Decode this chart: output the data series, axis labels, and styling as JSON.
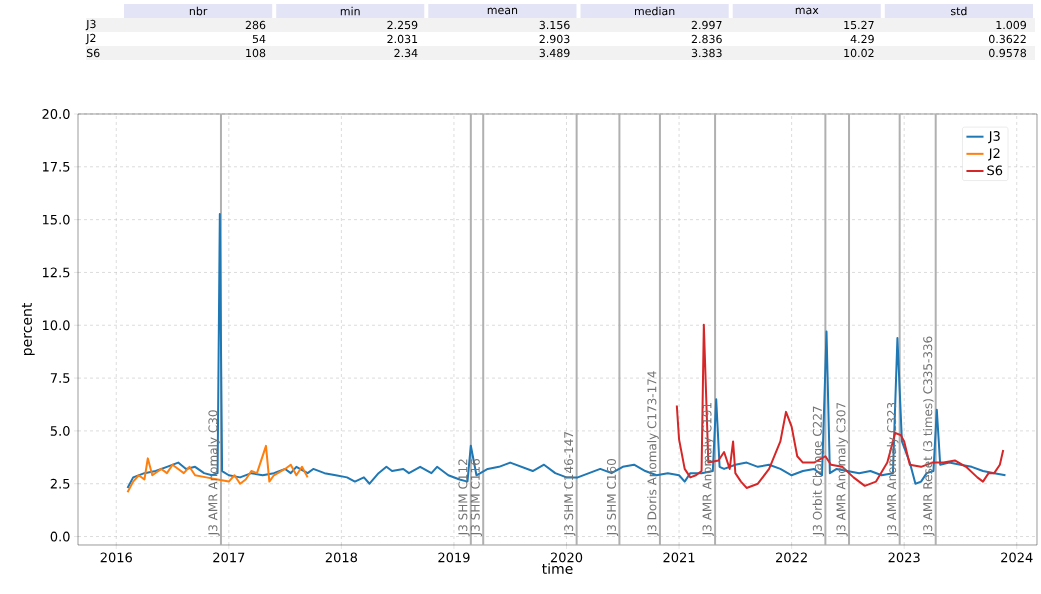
{
  "chart_data": [
    {
      "type": "other",
      "categories": [
        "nbr",
        "min",
        "mean",
        "median",
        "max",
        "std"
      ],
      "y_categories": [
        "J3",
        "J2",
        "S6"
      ],
      "cell_labels": [
        [
          "286",
          "2.259",
          "3.156",
          "2.997",
          "15.27",
          "1.009"
        ],
        [
          "54",
          "2.031",
          "2.903",
          "2.836",
          "4.29",
          "0.3622"
        ],
        [
          "108",
          "2.34",
          "3.489",
          "3.383",
          "10.02",
          "0.9578"
        ]
      ]
    },
    {
      "type": "line",
      "xlabel": "time",
      "ylabel": "percent",
      "xlim": [
        2015.66,
        2024.18
      ],
      "xticks": [
        2016,
        2017,
        2018,
        2019,
        2020,
        2021,
        2022,
        2023,
        2024
      ],
      "ylim": [
        -0.4,
        20
      ],
      "yticks": [
        {
          "value": 0,
          "label": "0.0"
        },
        {
          "value": 2.5,
          "label": "2.5"
        },
        {
          "value": 5,
          "label": "5.0"
        },
        {
          "value": 7.5,
          "label": "7.5"
        },
        {
          "value": 10,
          "label": "10.0"
        },
        {
          "value": 12.5,
          "label": "12.5"
        },
        {
          "value": 15,
          "label": "15.0"
        },
        {
          "value": 17.5,
          "label": "17.5"
        },
        {
          "value": 20,
          "label": "20.0"
        }
      ],
      "grid": true,
      "legend": "top right",
      "line_style": "solid",
      "ref_lines": [
        {
          "axis": "x",
          "value": 2016.93,
          "label": "J3 AMR Anomaly C30",
          "color": "#b0b0b0"
        },
        {
          "axis": "x",
          "value": 2019.15,
          "label": "J3 SHM C112",
          "color": "#b0b0b0"
        },
        {
          "axis": "x",
          "value": 2019.26,
          "label": "J3 SHM C116",
          "color": "#b0b0b0"
        },
        {
          "axis": "x",
          "value": 2020.09,
          "label": "J3 SHM C146-147",
          "color": "#b0b0b0"
        },
        {
          "axis": "x",
          "value": 2020.47,
          "label": "J3 SHM C160",
          "color": "#b0b0b0"
        },
        {
          "axis": "x",
          "value": 2020.83,
          "label": "J3 Doris Anomaly C173-174",
          "color": "#b0b0b0"
        },
        {
          "axis": "x",
          "value": 2021.32,
          "label": "J3 AMR Anomaly C191",
          "color": "#b0b0b0"
        },
        {
          "axis": "x",
          "value": 2022.3,
          "label": "J3 Orbit Change C227",
          "color": "#b0b0b0"
        },
        {
          "axis": "x",
          "value": 2022.51,
          "label": "J3 AMR Anomaly C307",
          "color": "#b0b0b0"
        },
        {
          "axis": "x",
          "value": 2022.96,
          "label": "J3 AMR Anomaly C323",
          "color": "#b0b0b0"
        },
        {
          "axis": "x",
          "value": 2023.28,
          "label": "J3 AMR Reset (3 times) C335-336",
          "color": "#b0b0b0"
        }
      ],
      "series": [
        {
          "name": "J3",
          "color": "#1f77b4",
          "x": [
            2016.1,
            2016.15,
            2016.25,
            2016.35,
            2016.45,
            2016.55,
            2016.62,
            2016.7,
            2016.78,
            2016.85,
            2016.9,
            2016.92,
            2016.94,
            2017.0,
            2017.1,
            2017.2,
            2017.3,
            2017.4,
            2017.5,
            2017.55,
            2017.6,
            2017.7,
            2017.75,
            2017.85,
            2017.95,
            2018.05,
            2018.12,
            2018.2,
            2018.25,
            2018.33,
            2018.4,
            2018.45,
            2018.55,
            2018.6,
            2018.7,
            2018.8,
            2018.85,
            2018.95,
            2019.05,
            2019.12,
            2019.15,
            2019.2,
            2019.3,
            2019.4,
            2019.5,
            2019.6,
            2019.7,
            2019.8,
            2019.9,
            2020.0,
            2020.1,
            2020.2,
            2020.3,
            2020.4,
            2020.5,
            2020.6,
            2020.7,
            2020.8,
            2020.9,
            2021.0,
            2021.05,
            2021.1,
            2021.2,
            2021.3,
            2021.33,
            2021.36,
            2021.4,
            2021.5,
            2021.6,
            2021.7,
            2021.8,
            2021.9,
            2022.0,
            2022.1,
            2022.2,
            2022.27,
            2022.31,
            2022.34,
            2022.4,
            2022.5,
            2022.6,
            2022.7,
            2022.8,
            2022.9,
            2022.94,
            2022.98,
            2023.05,
            2023.1,
            2023.15,
            2023.2,
            2023.26,
            2023.29,
            2023.32,
            2023.4,
            2023.5,
            2023.6,
            2023.7,
            2023.8,
            2023.9
          ],
          "values": [
            2.3,
            2.8,
            3.0,
            3.1,
            3.3,
            3.5,
            3.2,
            3.3,
            3.0,
            2.9,
            3.0,
            15.27,
            3.1,
            2.9,
            2.8,
            3.0,
            2.9,
            3.0,
            3.2,
            3.0,
            3.3,
            3.0,
            3.2,
            3.0,
            2.9,
            2.8,
            2.6,
            2.8,
            2.5,
            3.0,
            3.3,
            3.1,
            3.2,
            3.0,
            3.3,
            3.0,
            3.3,
            2.9,
            2.7,
            2.6,
            4.3,
            2.9,
            3.2,
            3.3,
            3.5,
            3.3,
            3.1,
            3.4,
            3.0,
            2.8,
            2.8,
            3.0,
            3.2,
            3.0,
            3.3,
            3.4,
            3.1,
            2.9,
            3.0,
            2.9,
            2.6,
            3.0,
            3.0,
            3.1,
            6.5,
            3.3,
            3.2,
            3.4,
            3.5,
            3.3,
            3.4,
            3.2,
            2.9,
            3.1,
            3.2,
            2.9,
            9.7,
            3.0,
            3.2,
            3.1,
            3.0,
            3.1,
            2.9,
            3.0,
            9.4,
            4.5,
            3.5,
            2.5,
            2.6,
            3.0,
            3.1,
            6.0,
            3.4,
            3.5,
            3.4,
            3.3,
            3.1,
            3.0,
            2.9
          ]
        },
        {
          "name": "J2",
          "color": "#ff7f0e",
          "x": [
            2016.1,
            2016.15,
            2016.2,
            2016.25,
            2016.28,
            2016.32,
            2016.4,
            2016.45,
            2016.5,
            2016.55,
            2016.6,
            2016.65,
            2016.7,
            2016.8,
            2016.9,
            2017.0,
            2017.05,
            2017.1,
            2017.15,
            2017.2,
            2017.25,
            2017.33,
            2017.36,
            2017.4,
            2017.5,
            2017.55,
            2017.6,
            2017.65,
            2017.7
          ],
          "values": [
            2.1,
            2.6,
            2.9,
            2.7,
            3.7,
            2.9,
            3.2,
            3.0,
            3.4,
            3.2,
            3.0,
            3.3,
            2.9,
            2.8,
            2.7,
            2.6,
            2.9,
            2.5,
            2.7,
            3.1,
            3.0,
            4.29,
            2.6,
            2.9,
            3.2,
            3.4,
            2.9,
            3.3,
            2.8
          ]
        },
        {
          "name": "S6",
          "color": "#d62728",
          "x": [
            2020.98,
            2021.0,
            2021.05,
            2021.1,
            2021.15,
            2021.2,
            2021.22,
            2021.26,
            2021.35,
            2021.4,
            2021.45,
            2021.48,
            2021.5,
            2021.55,
            2021.6,
            2021.7,
            2021.8,
            2021.9,
            2021.95,
            2022.0,
            2022.05,
            2022.1,
            2022.2,
            2022.3,
            2022.35,
            2022.45,
            2022.55,
            2022.65,
            2022.75,
            2022.85,
            2022.92,
            2022.97,
            2023.0,
            2023.05,
            2023.15,
            2023.25,
            2023.35,
            2023.45,
            2023.55,
            2023.65,
            2023.7,
            2023.75,
            2023.8,
            2023.85,
            2023.88
          ],
          "values": [
            6.2,
            4.6,
            3.2,
            2.8,
            2.9,
            3.1,
            10.02,
            3.5,
            3.6,
            4.0,
            3.2,
            4.5,
            3.0,
            2.6,
            2.3,
            2.5,
            3.2,
            4.5,
            5.9,
            5.2,
            3.8,
            3.5,
            3.5,
            3.8,
            3.4,
            3.3,
            2.8,
            2.4,
            2.6,
            3.5,
            4.9,
            4.8,
            4.5,
            3.4,
            3.3,
            3.5,
            3.5,
            3.6,
            3.3,
            2.8,
            2.6,
            3.0,
            3.0,
            3.4,
            4.1
          ]
        }
      ]
    }
  ]
}
